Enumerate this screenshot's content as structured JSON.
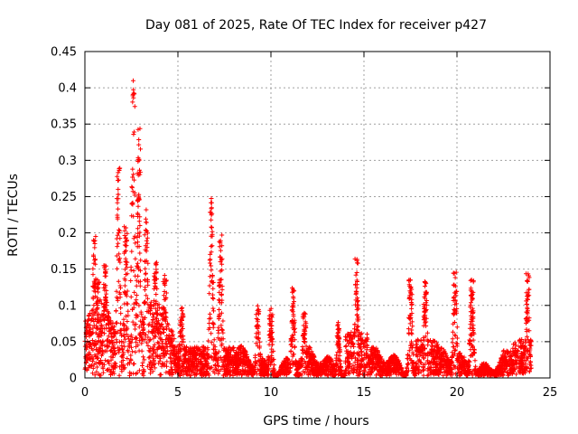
{
  "chart_data": {
    "type": "scatter",
    "title": "Day 081 of 2025, Rate Of TEC Index for receiver p427",
    "xlabel": "GPS time / hours",
    "ylabel": "ROTI / TECUs",
    "xlim": [
      0,
      25
    ],
    "ylim": [
      0,
      0.45
    ],
    "xticks": [
      0,
      5,
      10,
      15,
      20,
      25
    ],
    "xtick_labels": [
      "0",
      "5",
      "10",
      "15",
      "20",
      "25"
    ],
    "yticks": [
      0,
      0.05,
      0.1,
      0.15,
      0.2,
      0.25,
      0.3,
      0.35,
      0.4,
      0.45
    ],
    "ytick_labels": [
      "0",
      "0.05",
      "0.1",
      "0.15",
      "0.2",
      "0.25",
      "0.3",
      "0.35",
      "0.4",
      "0.45"
    ],
    "grid": true,
    "marker": "+",
    "color": "#ff0000",
    "peaks": [
      {
        "x": 0.5,
        "y": 0.2
      },
      {
        "x": 0.7,
        "y": 0.14
      },
      {
        "x": 1.1,
        "y": 0.16
      },
      {
        "x": 1.8,
        "y": 0.29
      },
      {
        "x": 2.2,
        "y": 0.21
      },
      {
        "x": 2.6,
        "y": 0.41
      },
      {
        "x": 2.9,
        "y": 0.35
      },
      {
        "x": 3.3,
        "y": 0.23
      },
      {
        "x": 3.8,
        "y": 0.16
      },
      {
        "x": 4.3,
        "y": 0.14
      },
      {
        "x": 5.2,
        "y": 0.1
      },
      {
        "x": 6.8,
        "y": 0.25
      },
      {
        "x": 7.3,
        "y": 0.2
      },
      {
        "x": 9.3,
        "y": 0.1
      },
      {
        "x": 10.0,
        "y": 0.095
      },
      {
        "x": 11.2,
        "y": 0.125
      },
      {
        "x": 11.8,
        "y": 0.09
      },
      {
        "x": 13.6,
        "y": 0.075
      },
      {
        "x": 14.6,
        "y": 0.165
      },
      {
        "x": 17.5,
        "y": 0.14
      },
      {
        "x": 18.3,
        "y": 0.14
      },
      {
        "x": 19.9,
        "y": 0.15
      },
      {
        "x": 20.8,
        "y": 0.14
      },
      {
        "x": 23.8,
        "y": 0.15
      }
    ]
  }
}
